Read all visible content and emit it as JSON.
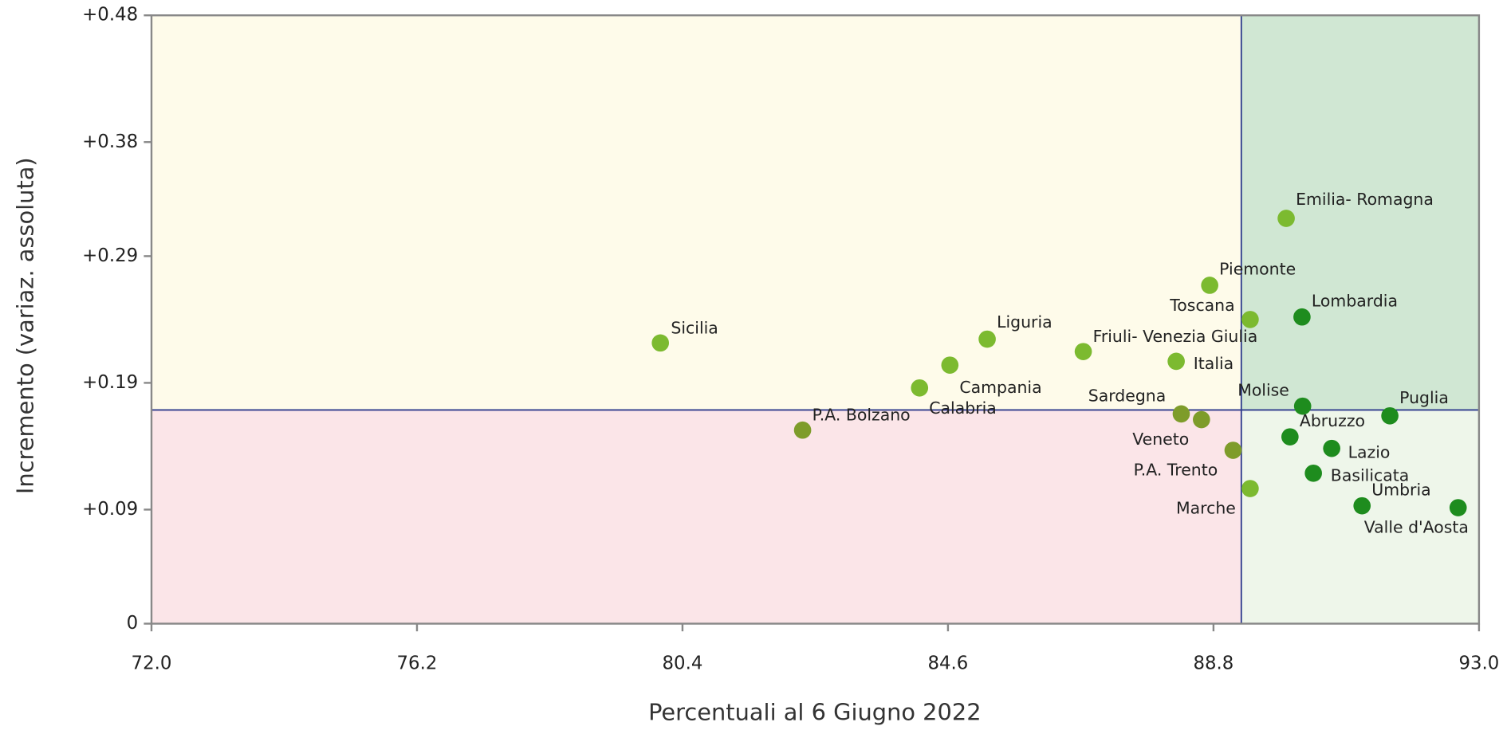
{
  "chart_data": {
    "type": "scatter",
    "xlabel": "Percentuali al 6 Giugno 2022",
    "ylabel": "Incremento (variaz. assoluta)",
    "xlim": [
      72.0,
      93.0
    ],
    "xticks": [
      {
        "value": 72.0,
        "label": "72.0"
      },
      76.2,
      80.4,
      84.6,
      88.8,
      {
        "value": 93.0,
        "label": "93.0"
      }
    ],
    "ylim": [
      0,
      0.48
    ],
    "yticks": [
      0,
      {
        "value": 0.09,
        "label": "+0.09"
      },
      {
        "value": 0.19,
        "label": "+0.19"
      },
      {
        "value": 0.29,
        "label": "+0.29"
      },
      {
        "value": 0.38,
        "label": "+0.38"
      },
      {
        "value": 0.48,
        "label": "+0.48"
      }
    ],
    "reference_lines": {
      "x": 89.24,
      "y": 0.1686,
      "color": "#2d3a8c"
    },
    "quadrant_colors": {
      "top_left": "#fefbea",
      "bottom_left": "#fbe5e8",
      "top_right": "#d0e7d3",
      "bottom_right": "#eef6ea"
    },
    "labels": [
      "Sicilia",
      "P.A. Bolzano",
      "Calabria",
      "Campania",
      "Liguria",
      "Friuli- Venezia Giulia",
      "Italia",
      "Piemonte",
      "Toscana",
      "Sardegna",
      "Veneto",
      "P.A. Trento",
      "Marche",
      "Emilia- Romagna",
      "Lombardia",
      "Molise",
      "Abruzzo",
      "Lazio",
      "Basilicata",
      "Puglia",
      "Umbria",
      "Valle d'Aosta"
    ],
    "x": [
      80.05,
      82.3,
      84.15,
      84.63,
      85.22,
      86.74,
      88.21,
      88.74,
      89.38,
      88.29,
      88.61,
      89.11,
      89.38,
      89.95,
      90.2,
      90.21,
      90.01,
      90.67,
      90.38,
      91.59,
      91.15,
      92.67
    ],
    "y": [
      0.2215,
      0.1527,
      0.186,
      0.204,
      0.2245,
      0.2147,
      0.207,
      0.267,
      0.24,
      0.1655,
      0.161,
      0.1368,
      0.1066,
      0.3198,
      0.242,
      0.1716,
      0.1474,
      0.1383,
      0.1187,
      0.164,
      0.093,
      0.0915
    ],
    "colors": [
      "#7cba30",
      "#7e9c2a",
      "#7cba30",
      "#7cba30",
      "#7cba30",
      "#7cba30",
      "#7cba30",
      "#7cba30",
      "#7cba30",
      "#7e9c2a",
      "#7e9c2a",
      "#7e9c2a",
      "#7cba30",
      "#7cba30",
      "#1e8c1e",
      "#1e8c1e",
      "#1e8c1e",
      "#1e8c1e",
      "#1e8c1e",
      "#1e8c1e",
      "#1e8c1e",
      "#1e8c1e"
    ]
  }
}
